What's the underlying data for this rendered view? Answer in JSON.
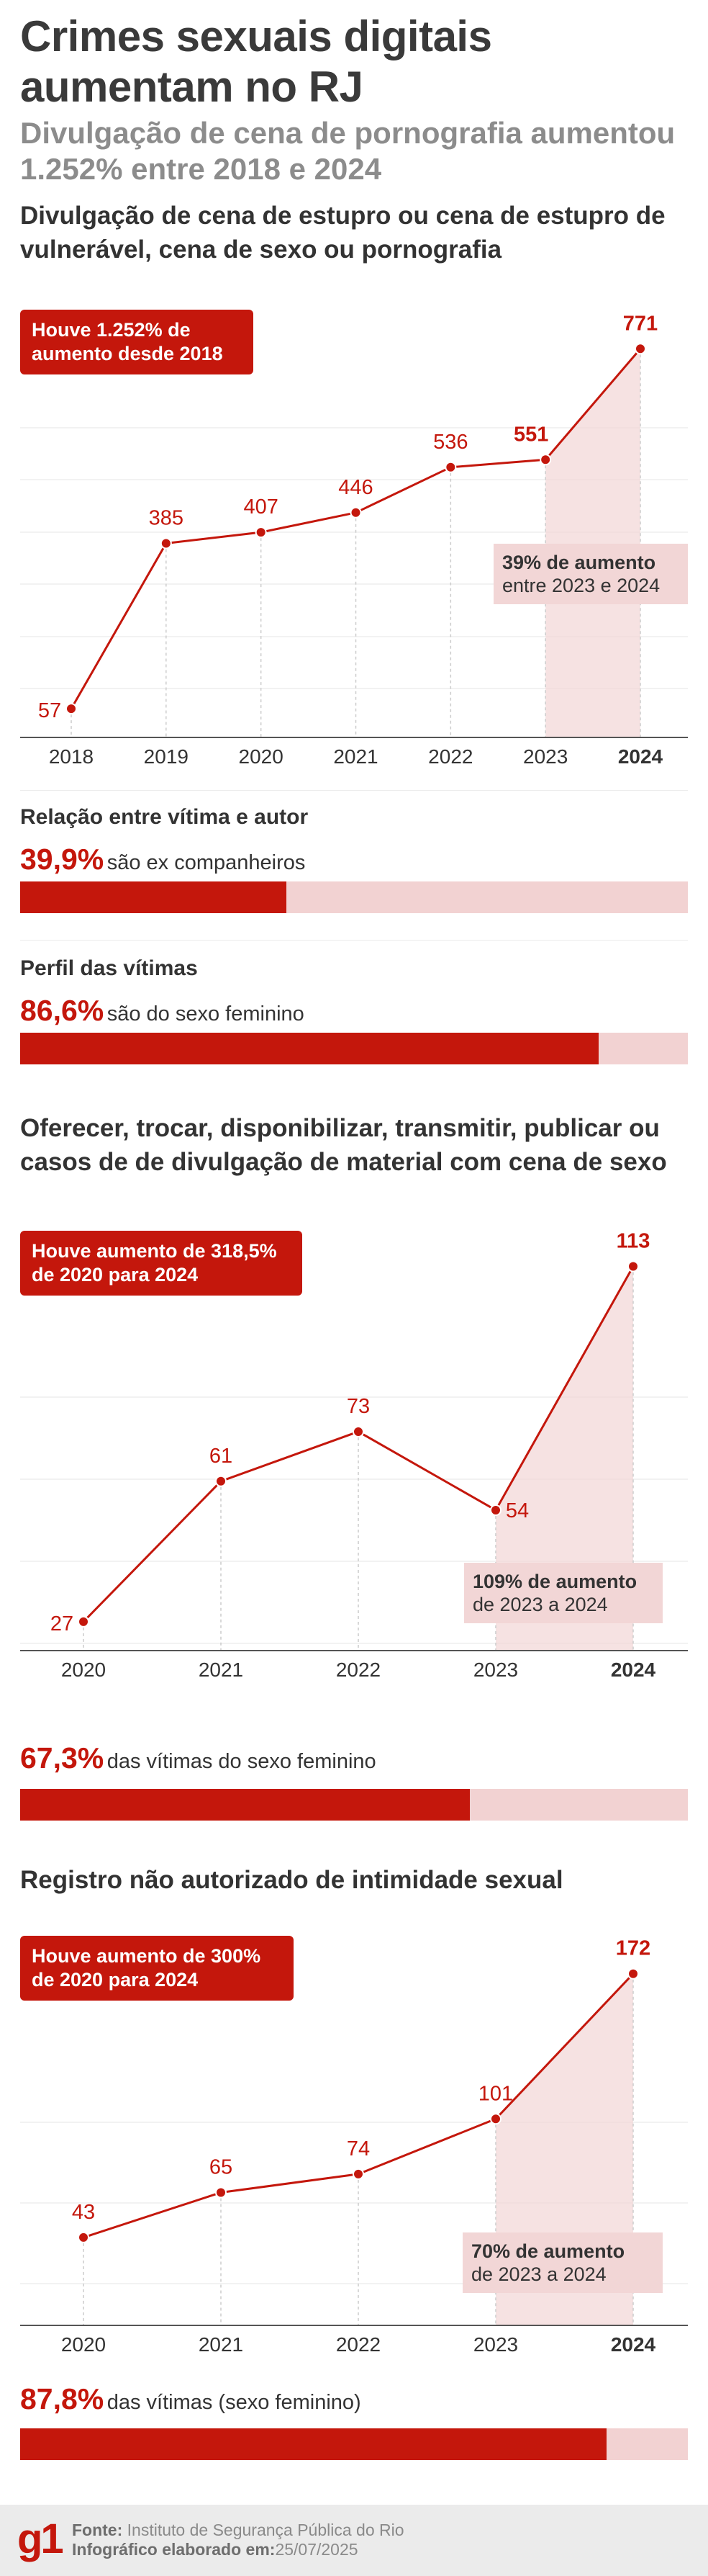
{
  "header": {
    "title": "Crimes sexuais digitais aumentam no RJ",
    "subtitle": "Divulgação de cena de pornografia aumentou 1.252% entre 2018 e 2024"
  },
  "colors": {
    "accent": "#c4170c",
    "highlight_bg": "#f2d6d6",
    "bar_track": "#f2d2d2",
    "axis_text": "#333333",
    "grid": "#cccccc"
  },
  "section1": {
    "title": "Divulgação de cena de estupro ou cena de estupro de vulnerável, cena de sexo ou pornografia",
    "callout": "Houve 1.252% de aumento desde 2018",
    "note_bold": "39% de aumento",
    "note_text": "entre 2023 e 2024",
    "relation": {
      "label": "Relação entre vítima e autor",
      "pct": "39,9%",
      "text": "são ex companheiros",
      "value": 39.9
    },
    "profile": {
      "label": "Perfil das vítimas",
      "pct": "86,6%",
      "text": "são do sexo feminino",
      "value": 86.6
    }
  },
  "section2": {
    "title": "Oferecer, trocar, disponibilizar, transmitir, publicar ou casos de de divulgação de material com cena de sexo",
    "callout": "Houve aumento de 318,5% de 2020 para 2024",
    "note_bold": "109% de aumento",
    "note_text": "de 2023 a 2024",
    "stat": {
      "pct": "67,3%",
      "text": "das vítimas do sexo feminino",
      "value": 67.3
    }
  },
  "section3": {
    "title": "Registro não autorizado de intimidade sexual",
    "callout": "Houve aumento de 300% de 2020 para 2024",
    "note_bold": "70% de aumento",
    "note_text": "de 2023 a 2024",
    "stat": {
      "pct": "87,8%",
      "text": "das vítimas (sexo feminino)",
      "value": 87.8
    }
  },
  "footer": {
    "logo": "g1",
    "source_label": "Fonte:",
    "source": "Instituto de Segurança Pública do Rio",
    "date_label": "Infográfico elaborado em:",
    "date": "25/07/2025"
  },
  "chart_data": [
    {
      "type": "line",
      "title": "Divulgação de cena de estupro ou cena de estupro de vulnerável, cena de sexo ou pornografia",
      "x": [
        "2018",
        "2019",
        "2020",
        "2021",
        "2022",
        "2023",
        "2024"
      ],
      "values": [
        57,
        385,
        407,
        446,
        536,
        551,
        771
      ],
      "ylim": [
        0,
        800
      ],
      "grid": true,
      "highlight": [
        "2023",
        "2024"
      ]
    },
    {
      "type": "line",
      "title": "Oferecer, trocar, disponibilizar, transmitir, publicar ou casos de de divulgação de material com cena de sexo",
      "x": [
        "2020",
        "2021",
        "2022",
        "2023",
        "2024"
      ],
      "values": [
        27,
        61,
        73,
        54,
        113
      ],
      "ylim": [
        20,
        115
      ],
      "grid": true,
      "highlight": [
        "2023",
        "2024"
      ]
    },
    {
      "type": "line",
      "title": "Registro não autorizado de intimidade sexual",
      "x": [
        "2020",
        "2021",
        "2022",
        "2023",
        "2024"
      ],
      "values": [
        43,
        65,
        74,
        101,
        172
      ],
      "ylim": [
        0,
        180
      ],
      "grid": true,
      "highlight": [
        "2023",
        "2024"
      ]
    }
  ]
}
